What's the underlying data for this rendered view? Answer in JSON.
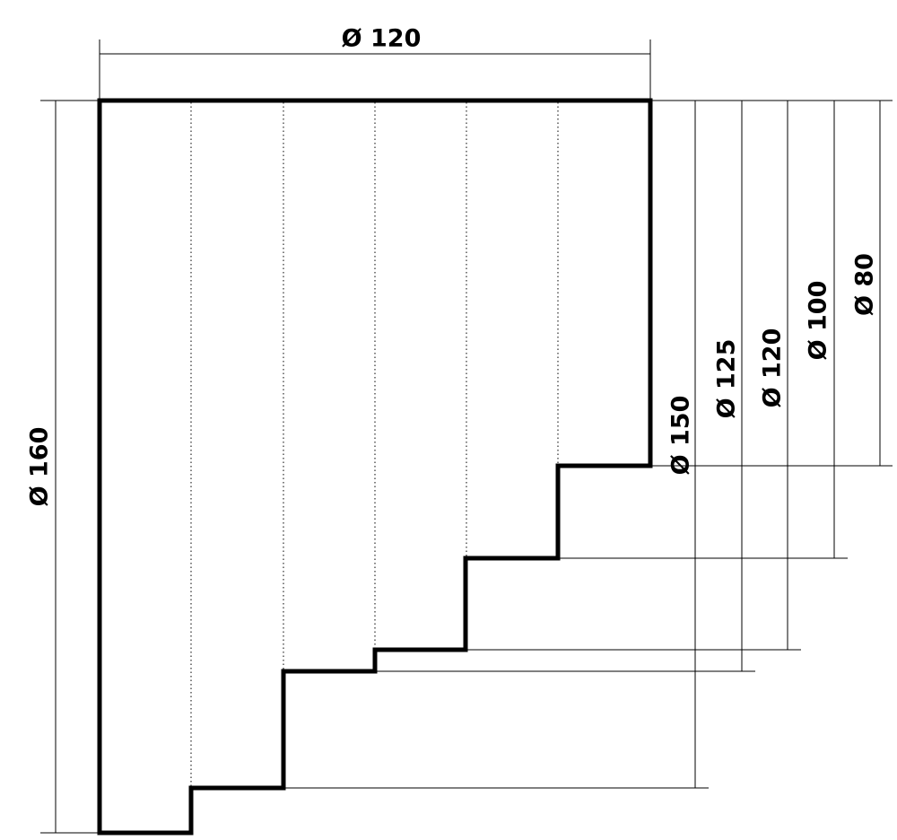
{
  "dimensions": {
    "top_width": "Ø 120",
    "left_height": "Ø 160",
    "steps": [
      "Ø 150",
      "Ø 125",
      "Ø 120",
      "Ø 100",
      "Ø 80"
    ]
  }
}
